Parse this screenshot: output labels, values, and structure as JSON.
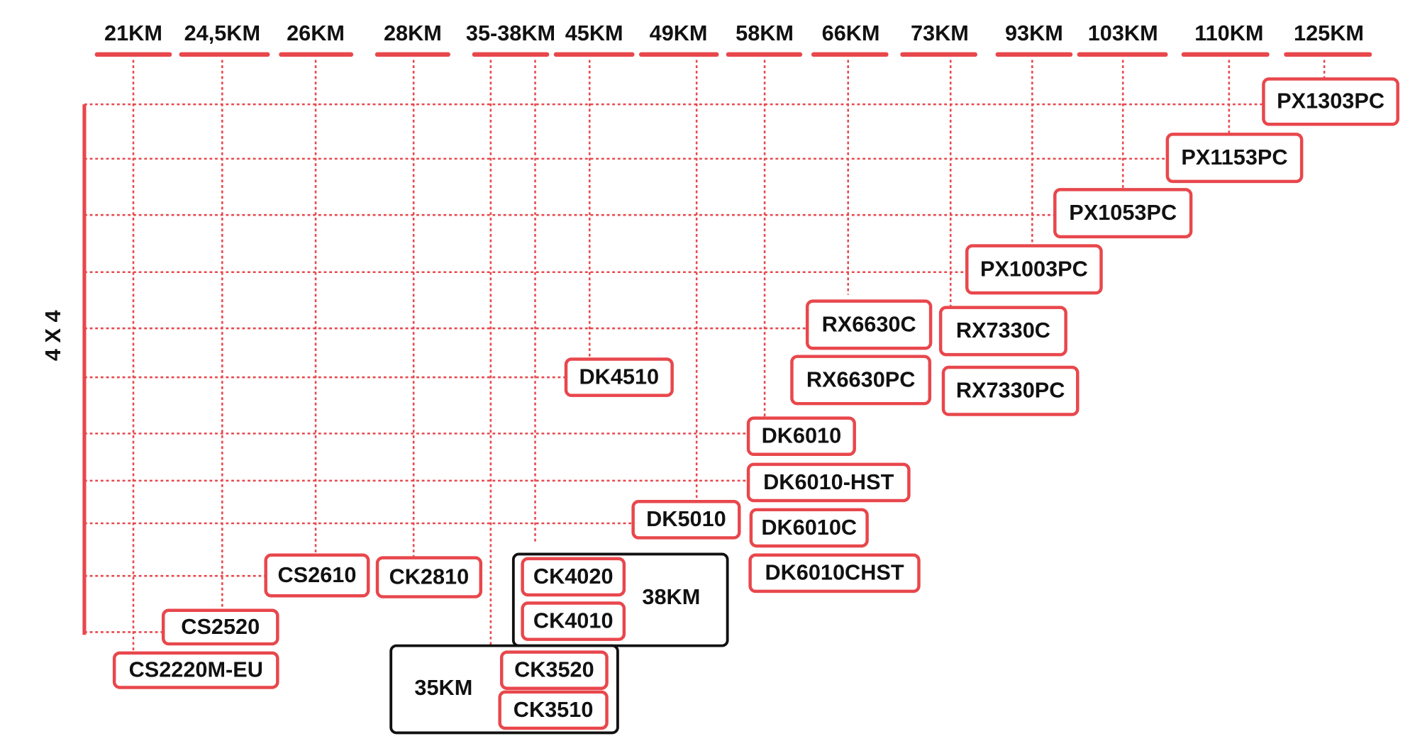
{
  "axis_label": "4 X 4",
  "columns": [
    "21KM",
    "24,5KM",
    "26KM",
    "28KM",
    "35-38KM",
    "45KM",
    "49KM",
    "58KM",
    "66KM",
    "73KM",
    "93KM",
    "103KM",
    "110KM",
    "125KM"
  ],
  "models": [
    "PX1303PC",
    "PX1153PC",
    "PX1053PC",
    "PX1003PC",
    "RX6630C",
    "RX7330C",
    "RX6630PC",
    "RX7330PC",
    "DK4510",
    "DK6010",
    "DK6010-HST",
    "DK5010",
    "DK6010C",
    "DK6010CHST",
    "CS2610",
    "CK2810",
    "CK4020",
    "CK4010",
    "CS2520",
    "CS2220M-EU",
    "CK3520",
    "CK3510"
  ],
  "groups": [
    "38KM",
    "35KM"
  ]
}
